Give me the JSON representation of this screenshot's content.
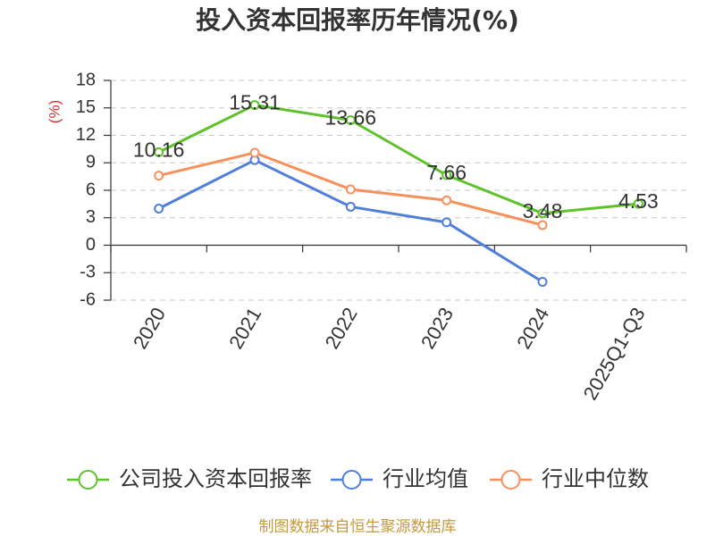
{
  "footer": "制图数据来自恒生聚源数据库",
  "chart_data": {
    "type": "line",
    "title": "投入资本回报率历年情况(%)",
    "ylabel": "(%)",
    "categories": [
      "2020",
      "2021",
      "2022",
      "2023",
      "2024",
      "2025Q1-Q3"
    ],
    "ylim": [
      -6,
      18
    ],
    "yticks": [
      18,
      15,
      12,
      9,
      6,
      3,
      0,
      -3,
      -6
    ],
    "grid": true,
    "series": [
      {
        "name": "公司投入资本回报率",
        "color": "#5ec22b",
        "show_labels": true,
        "values": [
          10.16,
          15.31,
          13.66,
          7.66,
          3.48,
          4.53
        ]
      },
      {
        "name": "行业均值",
        "color": "#4f7fd9",
        "show_labels": false,
        "values": [
          4.0,
          9.3,
          4.2,
          2.5,
          -4.0,
          null
        ]
      },
      {
        "name": "行业中位数",
        "color": "#f7905a",
        "show_labels": false,
        "values": [
          7.6,
          10.1,
          6.1,
          4.9,
          2.2,
          null
        ]
      }
    ]
  }
}
